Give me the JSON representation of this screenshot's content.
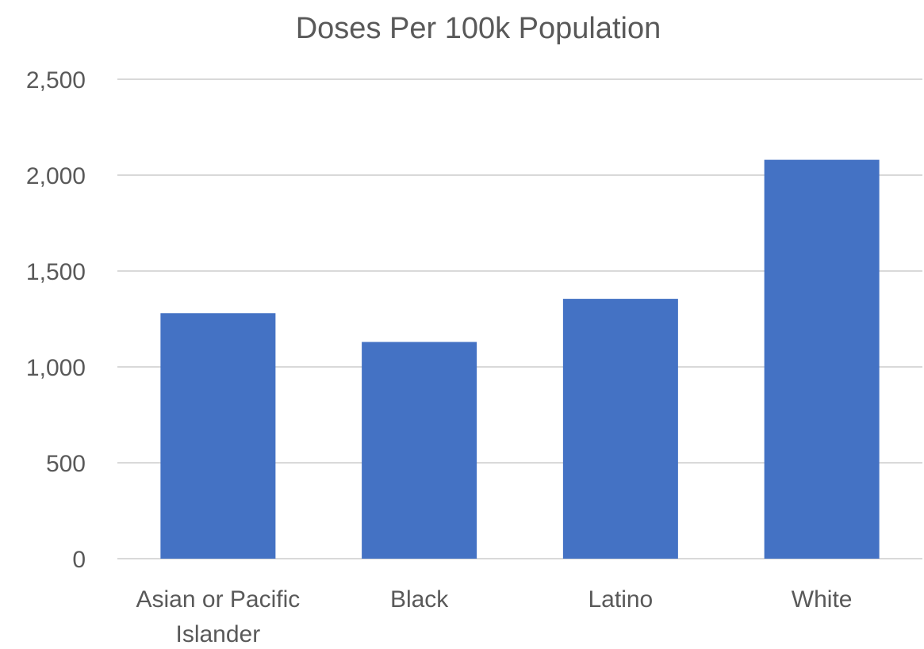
{
  "chart_data": {
    "type": "bar",
    "title": "Doses Per 100k Population",
    "xlabel": "",
    "ylabel": "",
    "categories": [
      "Asian or Pacific Islander",
      "Black",
      "Latino",
      "White"
    ],
    "category_label_lines": [
      [
        "Asian or Pacific",
        "Islander"
      ],
      [
        "Black"
      ],
      [
        "Latino"
      ],
      [
        "White"
      ]
    ],
    "values": [
      1280,
      1130,
      1355,
      2080
    ],
    "ylim": [
      0,
      2500
    ],
    "yticks": [
      0,
      500,
      1000,
      1500,
      2000,
      2500
    ],
    "ytick_labels": [
      "0",
      "500",
      "1,000",
      "1,500",
      "2,000",
      "2,500"
    ],
    "grid": true,
    "legend": "none",
    "bar_color": "#4472C4",
    "grid_color": "#D9D9D9",
    "text_color": "#595959"
  }
}
